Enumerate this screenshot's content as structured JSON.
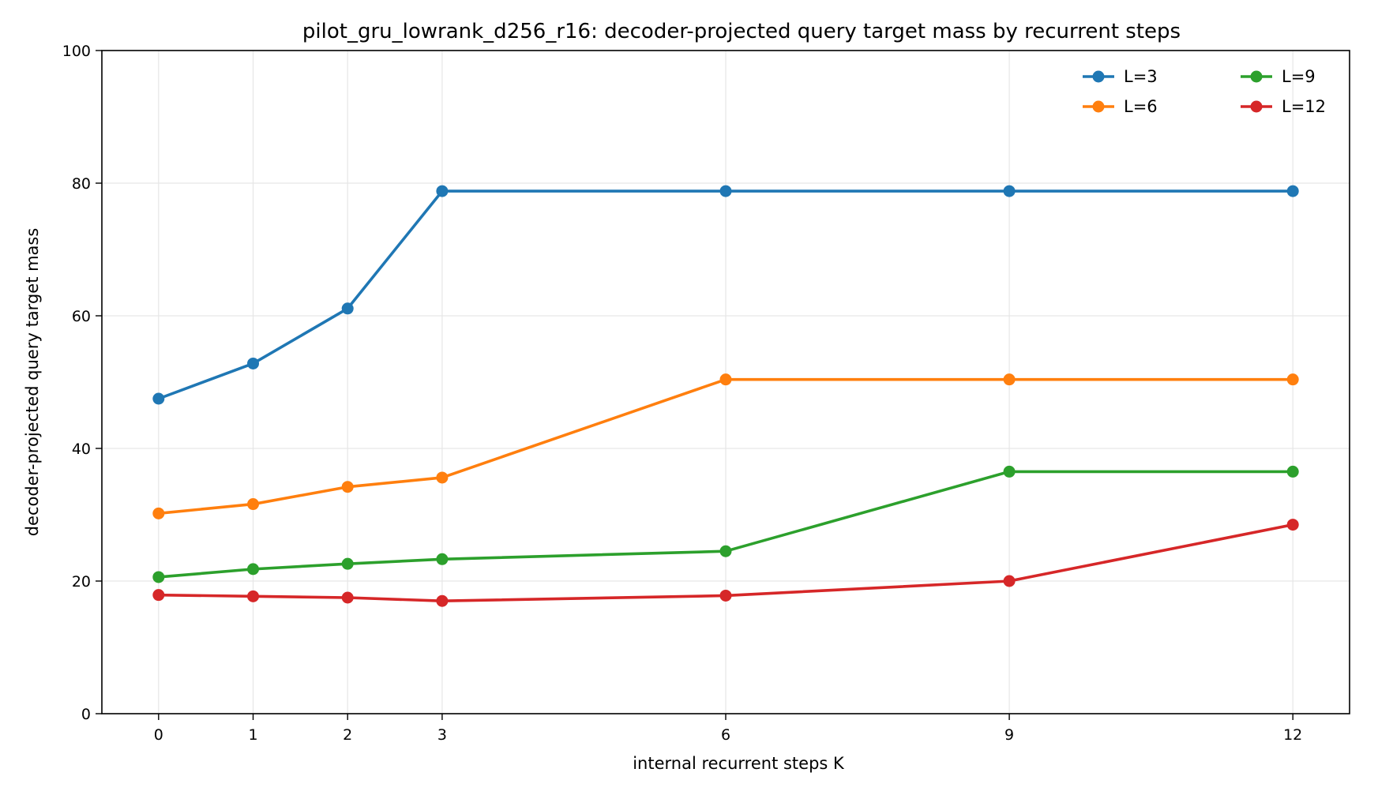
{
  "chart_data": {
    "type": "line",
    "title": "pilot_gru_lowrank_d256_r16: decoder-projected query target mass by recurrent steps",
    "xlabel": "internal recurrent steps K",
    "ylabel": "decoder-projected query target mass",
    "x": [
      0,
      1,
      2,
      3,
      6,
      9,
      12
    ],
    "x_ticks": [
      "0",
      "1",
      "2",
      "3",
      "6",
      "9",
      "12"
    ],
    "xlim": [
      -0.6,
      12.6
    ],
    "ylim": [
      0,
      100
    ],
    "y_ticks": [
      "0",
      "20",
      "40",
      "60",
      "80",
      "100"
    ],
    "grid": true,
    "legend_position": "top-right",
    "legend_columns": 2,
    "series": [
      {
        "name": "L=3",
        "color": "#1f77b4",
        "values": [
          47.5,
          52.8,
          61.1,
          78.8,
          78.8,
          78.8,
          78.8
        ]
      },
      {
        "name": "L=6",
        "color": "#ff7f0e",
        "values": [
          30.2,
          31.6,
          34.2,
          35.6,
          50.4,
          50.4,
          50.4
        ]
      },
      {
        "name": "L=9",
        "color": "#2ca02c",
        "values": [
          20.6,
          21.8,
          22.6,
          23.3,
          24.5,
          36.5,
          36.5
        ]
      },
      {
        "name": "L=12",
        "color": "#d62728",
        "values": [
          17.9,
          17.7,
          17.5,
          17.0,
          17.8,
          20.0,
          28.5
        ]
      }
    ]
  }
}
